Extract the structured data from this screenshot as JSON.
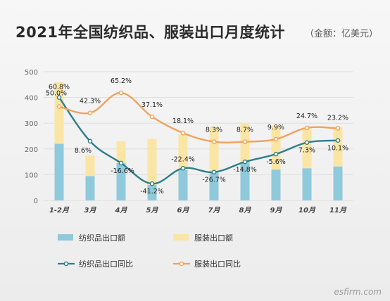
{
  "title": "2021年全国纺织品、服装出口月度统计",
  "unit": "（金额：亿美元）",
  "watermark": "esfirm.com",
  "chart_data": {
    "type": "bar",
    "categories": [
      "1-2月",
      "3月",
      "4月",
      "5月",
      "6月",
      "7月",
      "8月",
      "9月",
      "10月",
      "11月"
    ],
    "ylim": [
      0,
      500
    ],
    "yticks": [
      0,
      100,
      200,
      300,
      400,
      500
    ],
    "grid": true,
    "legend_placement": "bottom",
    "series": [
      {
        "name": "纺织品出口额",
        "type": "bar",
        "stack": "a",
        "color": "#8ecadb",
        "values": [
          220,
          95,
          145,
          60,
          120,
          110,
          150,
          120,
          125,
          132
        ]
      },
      {
        "name": "服装出口额",
        "type": "bar",
        "stack": "a",
        "color": "#fbe5a5",
        "values": [
          240,
          80,
          85,
          180,
          138,
          175,
          150,
          170,
          160,
          155
        ]
      },
      {
        "name": "纺织品出口同比",
        "type": "line",
        "color": "#2e7f8a",
        "values": [
          400,
          230,
          145,
          65,
          125,
          110,
          150,
          180,
          225,
          233
        ],
        "labels": [
          "60.8%",
          "8.6%",
          "-16.6%",
          "-41.2%",
          "-22.4%",
          "-26.7%",
          "-14.8%",
          "-5.6%",
          "7.3%",
          "10.1%"
        ]
      },
      {
        "name": "服装出口同比",
        "type": "line",
        "color": "#f0a35c",
        "values": [
          365,
          340,
          418,
          325,
          262,
          228,
          228,
          238,
          282,
          280
        ],
        "labels": [
          "50.0%",
          "42.3%",
          "65.2%",
          "37.1%",
          "18.1%",
          "8.3%",
          "8.7%",
          "9.9%",
          "24.7%",
          "23.2%"
        ]
      }
    ]
  }
}
